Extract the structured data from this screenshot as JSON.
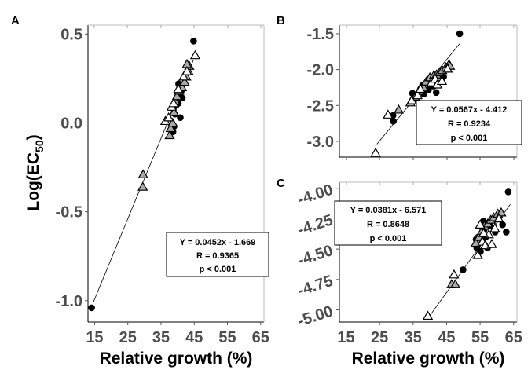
{
  "chart_data": [
    {
      "panel": "A",
      "type": "scatter",
      "xlabel": "Relative growth (%)",
      "ylabel_main": "Log(EC",
      "ylabel_sub": "50",
      "ylabel_close": ")",
      "xlim": [
        13,
        66
      ],
      "ylim": [
        -1.12,
        0.55
      ],
      "xticks": [
        15,
        25,
        35,
        45,
        55,
        65
      ],
      "yticks": [
        0.5,
        0.0,
        -0.5,
        -1.0
      ],
      "yticklabels": [
        "0.5",
        "0.0",
        "-0.5",
        "-1.0"
      ],
      "fit": {
        "slope": 0.0452,
        "intercept": -1.669,
        "x_range": [
          14.5,
          44.8
        ]
      },
      "annotation": {
        "eq": "Y = 0.0452x - 1.669",
        "r": "R = 0.9365",
        "p": "p < 0.001"
      },
      "series": [
        {
          "marker": "circle",
          "points": [
            [
              14.1,
              -1.04
            ],
            [
              44.8,
              0.46
            ],
            [
              40.3,
              0.22
            ],
            [
              40.6,
              0.2
            ],
            [
              41.1,
              0.18
            ],
            [
              40.9,
              0.17
            ],
            [
              41.4,
              0.14
            ],
            [
              40.2,
              0.11
            ],
            [
              39.6,
              0.1
            ],
            [
              38.7,
              0.08
            ],
            [
              39.2,
              0.05
            ],
            [
              40.8,
              0.03
            ],
            [
              38.9,
              -0.02
            ],
            [
              38.4,
              -0.03
            ],
            [
              38.6,
              -0.05
            ]
          ]
        },
        {
          "marker": "triangle-grey",
          "points": [
            [
              29.6,
              -0.29
            ],
            [
              29.5,
              -0.36
            ],
            [
              37.6,
              -0.07
            ],
            [
              37.9,
              -0.03
            ],
            [
              38.5,
              0.0
            ],
            [
              38.9,
              0.06
            ],
            [
              39.3,
              0.12
            ],
            [
              39.8,
              0.15
            ],
            [
              40.5,
              0.18
            ],
            [
              41.3,
              0.2
            ],
            [
              42.1,
              0.23
            ],
            [
              42.6,
              0.26
            ],
            [
              43.3,
              0.29
            ],
            [
              43.5,
              0.32
            ],
            [
              42.8,
              0.33
            ]
          ]
        },
        {
          "marker": "triangle-open",
          "points": [
            [
              36.3,
              0.01
            ],
            [
              37.3,
              0.03
            ],
            [
              38.2,
              0.09
            ],
            [
              38.8,
              0.11
            ],
            [
              40.2,
              0.19
            ],
            [
              41.8,
              0.26
            ],
            [
              42.8,
              0.29
            ],
            [
              45.3,
              0.38
            ]
          ]
        }
      ]
    },
    {
      "panel": "B",
      "type": "scatter",
      "xlabel": "",
      "xlim": [
        13,
        66
      ],
      "ylim": [
        -3.22,
        -1.38
      ],
      "yticks": [
        -1.5,
        -2.0,
        -2.5,
        -3.0
      ],
      "yticklabels": [
        "-1.5",
        "-2.0",
        "-2.5",
        "-3.0"
      ],
      "fit": {
        "slope": 0.0567,
        "intercept": -4.412,
        "x_range": [
          24.2,
          48.9
        ]
      },
      "annotation": {
        "eq": "Y = 0.0567x - 4.412",
        "r": "R = 0.9234",
        "p": "p < 0.001"
      },
      "series": [
        {
          "marker": "circle",
          "points": [
            [
              48.9,
              -1.5
            ],
            [
              29.0,
              -2.64
            ],
            [
              29.1,
              -2.72
            ],
            [
              34.8,
              -2.33
            ],
            [
              36.2,
              -2.38
            ],
            [
              37.8,
              -2.22
            ],
            [
              39.1,
              -2.18
            ],
            [
              40.1,
              -2.2
            ],
            [
              41.1,
              -2.23
            ],
            [
              41.9,
              -2.32
            ],
            [
              39.8,
              -2.14
            ],
            [
              42.0,
              -2.1
            ],
            [
              43.2,
              -2.05
            ],
            [
              44.1,
              -2.1
            ],
            [
              39.6,
              -2.28
            ],
            [
              38.2,
              -2.34
            ],
            [
              37.2,
              -2.27
            ]
          ]
        },
        {
          "marker": "triangle-grey",
          "points": [
            [
              30.7,
              -2.56
            ],
            [
              34.2,
              -2.46
            ],
            [
              35.6,
              -2.38
            ],
            [
              36.7,
              -2.3
            ],
            [
              38.0,
              -2.24
            ],
            [
              38.9,
              -2.17
            ],
            [
              40.0,
              -2.11
            ],
            [
              41.2,
              -2.08
            ],
            [
              42.0,
              -2.07
            ],
            [
              42.9,
              -2.04
            ],
            [
              43.7,
              -2.01
            ],
            [
              44.8,
              -1.97
            ],
            [
              45.7,
              -1.93
            ],
            [
              46.0,
              -1.95
            ]
          ]
        },
        {
          "marker": "triangle-open",
          "points": [
            [
              23.8,
              -3.16
            ],
            [
              27.5,
              -2.63
            ],
            [
              34.6,
              -2.43
            ],
            [
              36.3,
              -2.36
            ],
            [
              37.2,
              -2.27
            ],
            [
              40.5,
              -2.18
            ],
            [
              41.6,
              -2.13
            ],
            [
              42.2,
              -2.21
            ],
            [
              43.6,
              -2.16
            ],
            [
              45.3,
              -1.99
            ]
          ]
        }
      ]
    },
    {
      "panel": "C",
      "type": "scatter",
      "xlabel": "Relative growth (%)",
      "xlim": [
        13,
        66
      ],
      "ylim": [
        -5.1,
        -3.95
      ],
      "xticks": [
        15,
        25,
        35,
        45,
        55,
        65
      ],
      "yticks": [
        -4.0,
        -4.25,
        -4.5,
        -4.75,
        -5.0
      ],
      "yticklabels": [
        "-4.00",
        "-4.25",
        "-4.50",
        "-4.75",
        "-5.00"
      ],
      "fit": {
        "slope": 0.0381,
        "intercept": -6.571,
        "x_range": [
          39.5,
          64.0
        ]
      },
      "annotation": {
        "eq": "Y = 0.0381x - 6.571",
        "r": "R = 0.8648",
        "p": "p < 0.001"
      },
      "series": [
        {
          "marker": "circle",
          "points": [
            [
              63.4,
              -4.03
            ],
            [
              49.9,
              -4.67
            ],
            [
              56.0,
              -4.27
            ],
            [
              58.0,
              -4.31
            ],
            [
              56.7,
              -4.4
            ],
            [
              55.3,
              -4.38
            ],
            [
              54.5,
              -4.4
            ],
            [
              53.8,
              -4.42
            ],
            [
              54.0,
              -4.49
            ],
            [
              56.2,
              -4.34
            ],
            [
              59.5,
              -4.36
            ],
            [
              61.7,
              -4.3
            ],
            [
              62.8,
              -4.36
            ],
            [
              57.2,
              -4.49
            ],
            [
              55.1,
              -4.52
            ]
          ]
        },
        {
          "marker": "triangle-grey",
          "points": [
            [
              46.5,
              -4.79
            ],
            [
              47.6,
              -4.79
            ],
            [
              53.7,
              -4.45
            ],
            [
              54.7,
              -4.4
            ],
            [
              55.6,
              -4.35
            ],
            [
              56.3,
              -4.31
            ],
            [
              57.3,
              -4.29
            ],
            [
              58.2,
              -4.26
            ],
            [
              59.1,
              -4.24
            ],
            [
              60.3,
              -4.21
            ],
            [
              61.3,
              -4.2
            ],
            [
              55.8,
              -4.43
            ]
          ]
        },
        {
          "marker": "triangle-open",
          "points": [
            [
              39.4,
              -5.05
            ],
            [
              47.2,
              -4.71
            ],
            [
              54.3,
              -4.55
            ],
            [
              55.7,
              -4.44
            ],
            [
              56.5,
              -4.47
            ],
            [
              58.5,
              -4.46
            ],
            [
              59.4,
              -4.33
            ],
            [
              60.6,
              -4.25
            ],
            [
              57.6,
              -4.38
            ],
            [
              55.0,
              -4.3
            ],
            [
              56.0,
              -4.37
            ]
          ]
        }
      ]
    }
  ]
}
